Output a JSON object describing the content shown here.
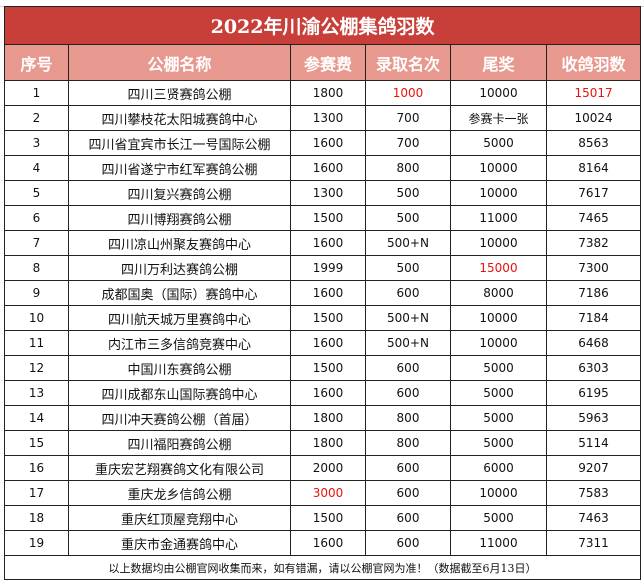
{
  "title": "2022年川渝公棚集鸽羽数",
  "headers": [
    "序号",
    "公棚名称",
    "参赛费",
    "录取名次",
    "尾奖",
    "收鸽羽数"
  ],
  "highlight_color": "#e8140c",
  "rows": [
    {
      "no": "1",
      "name": "四川三贤赛鸽公棚",
      "fee": "1800",
      "rank": "1000",
      "last": "10000",
      "count": "15017",
      "red": [
        "rank",
        "count"
      ]
    },
    {
      "no": "2",
      "name": "四川攀枝花太阳城赛鸽中心",
      "fee": "1300",
      "rank": "700",
      "last": "参赛卡一张",
      "count": "10024",
      "red": []
    },
    {
      "no": "3",
      "name": "四川省宜宾市长江一号国际公棚",
      "fee": "1600",
      "rank": "700",
      "last": "5000",
      "count": "8563",
      "red": []
    },
    {
      "no": "4",
      "name": "四川省遂宁市红军赛鸽公棚",
      "fee": "1600",
      "rank": "800",
      "last": "10000",
      "count": "8164",
      "red": []
    },
    {
      "no": "5",
      "name": "四川复兴赛鸽公棚",
      "fee": "1300",
      "rank": "500",
      "last": "10000",
      "count": "7617",
      "red": []
    },
    {
      "no": "6",
      "name": "四川博翔赛鸽公棚",
      "fee": "1500",
      "rank": "500",
      "last": "11000",
      "count": "7465",
      "red": []
    },
    {
      "no": "7",
      "name": "四川凉山州聚友赛鸽中心",
      "fee": "1600",
      "rank": "500+N",
      "last": "10000",
      "count": "7382",
      "red": []
    },
    {
      "no": "8",
      "name": "四川万利达赛鸽公棚",
      "fee": "1999",
      "rank": "500",
      "last": "15000",
      "count": "7300",
      "red": [
        "last"
      ]
    },
    {
      "no": "9",
      "name": "成都国奥（国际）赛鸽中心",
      "fee": "1600",
      "rank": "600",
      "last": "8000",
      "count": "7186",
      "red": []
    },
    {
      "no": "10",
      "name": "四川航天城万里赛鸽中心",
      "fee": "1500",
      "rank": "500+N",
      "last": "10000",
      "count": "7184",
      "red": []
    },
    {
      "no": "11",
      "name": "内江市三多信鸽竞赛中心",
      "fee": "1600",
      "rank": "500+N",
      "last": "10000",
      "count": "6468",
      "red": []
    },
    {
      "no": "12",
      "name": "中国川东赛鸽公棚",
      "fee": "1500",
      "rank": "600",
      "last": "5000",
      "count": "6303",
      "red": []
    },
    {
      "no": "13",
      "name": "四川成都东山国际赛鸽中心",
      "fee": "1600",
      "rank": "600",
      "last": "5000",
      "count": "6195",
      "red": []
    },
    {
      "no": "14",
      "name": "四川冲天赛鸽公棚（首届）",
      "fee": "1800",
      "rank": "800",
      "last": "5000",
      "count": "5963",
      "red": []
    },
    {
      "no": "15",
      "name": "四川福阳赛鸽公棚",
      "fee": "1800",
      "rank": "800",
      "last": "5000",
      "count": "5114",
      "red": []
    },
    {
      "no": "16",
      "name": "重庆宏艺翔赛鸽文化有限公司",
      "fee": "2000",
      "rank": "600",
      "last": "6000",
      "count": "9207",
      "red": []
    },
    {
      "no": "17",
      "name": "重庆龙乡信鸽公棚",
      "fee": "3000",
      "rank": "600",
      "last": "10000",
      "count": "7583",
      "red": [
        "fee"
      ]
    },
    {
      "no": "18",
      "name": "重庆红顶屋竞翔中心",
      "fee": "1500",
      "rank": "600",
      "last": "5000",
      "count": "7463",
      "red": []
    },
    {
      "no": "19",
      "name": "重庆市金通赛鸽中心",
      "fee": "1600",
      "rank": "600",
      "last": "11000",
      "count": "7311",
      "red": []
    }
  ],
  "footer": "以上数据均由公棚官网收集而来，如有错漏，请以公棚官网为准！（数据截至6月13日）"
}
